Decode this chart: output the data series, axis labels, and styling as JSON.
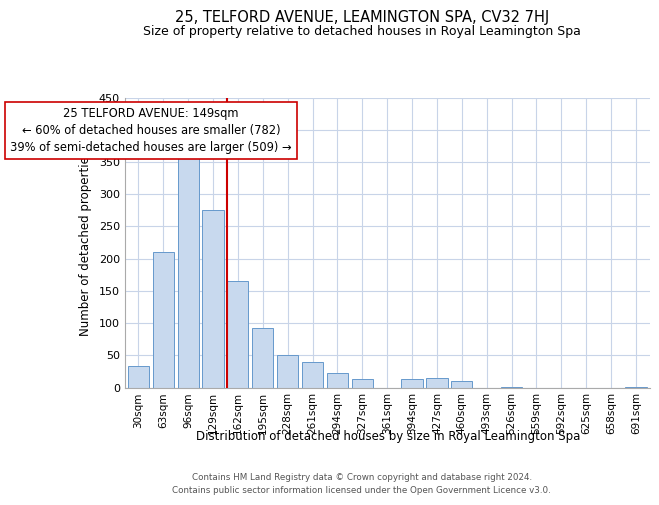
{
  "title": "25, TELFORD AVENUE, LEAMINGTON SPA, CV32 7HJ",
  "subtitle": "Size of property relative to detached houses in Royal Leamington Spa",
  "xlabel": "Distribution of detached houses by size in Royal Leamington Spa",
  "ylabel": "Number of detached properties",
  "bin_labels": [
    "30sqm",
    "63sqm",
    "96sqm",
    "129sqm",
    "162sqm",
    "195sqm",
    "228sqm",
    "261sqm",
    "294sqm",
    "327sqm",
    "361sqm",
    "394sqm",
    "427sqm",
    "460sqm",
    "493sqm",
    "526sqm",
    "559sqm",
    "592sqm",
    "625sqm",
    "658sqm",
    "691sqm"
  ],
  "bar_values": [
    33,
    210,
    378,
    276,
    165,
    92,
    51,
    40,
    23,
    13,
    0,
    13,
    15,
    10,
    0,
    1,
    0,
    0,
    0,
    0,
    1
  ],
  "bar_color": "#c8d9ee",
  "bar_edge_color": "#6699cc",
  "vline_color": "#cc0000",
  "annotation_text": "25 TELFORD AVENUE: 149sqm\n← 60% of detached houses are smaller (782)\n39% of semi-detached houses are larger (509) →",
  "ylim": [
    0,
    450
  ],
  "yticks": [
    0,
    50,
    100,
    150,
    200,
    250,
    300,
    350,
    400,
    450
  ],
  "background_color": "#ffffff",
  "grid_color": "#c8d4e8",
  "footer_line1": "Contains HM Land Registry data © Crown copyright and database right 2024.",
  "footer_line2": "Contains public sector information licensed under the Open Government Licence v3.0.",
  "title_fontsize": 10.5,
  "subtitle_fontsize": 9,
  "vline_bin_index": 4
}
